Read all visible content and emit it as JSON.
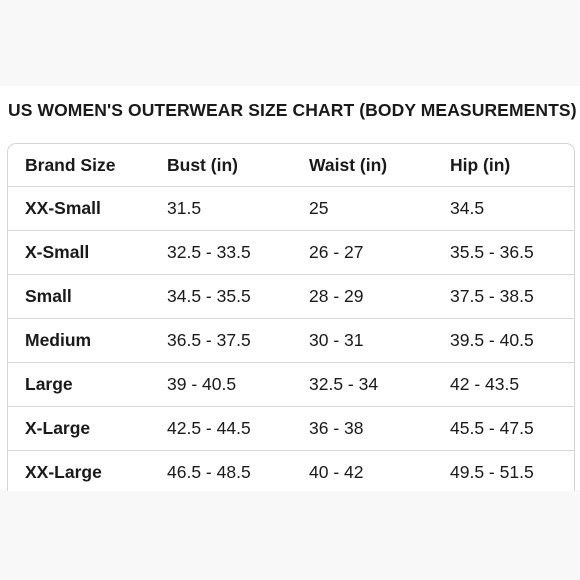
{
  "title": "US WOMEN'S OUTERWEAR SIZE CHART (BODY MEASUREMENTS)",
  "table": {
    "headers": [
      "Brand Size",
      "Bust (in)",
      "Waist (in)",
      "Hip (in)"
    ],
    "rows": [
      [
        "XX-Small",
        "31.5",
        "25",
        "34.5"
      ],
      [
        "X-Small",
        "32.5 - 33.5",
        "26 - 27",
        "35.5 - 36.5"
      ],
      [
        "Small",
        "34.5 - 35.5",
        "28 - 29",
        "37.5 - 38.5"
      ],
      [
        "Medium",
        "36.5 - 37.5",
        "30 - 31",
        "39.5 - 40.5"
      ],
      [
        "Large",
        "39 - 40.5",
        "32.5 - 34",
        "42 - 43.5"
      ],
      [
        "X-Large",
        "42.5 - 44.5",
        "36 - 38",
        "45.5 - 47.5"
      ],
      [
        "XX-Large",
        "46.5 - 48.5",
        "40 - 42",
        "49.5 - 51.5"
      ]
    ]
  },
  "colors": {
    "text": "#1a1a1a",
    "border": "#d9d9d9",
    "background_band": "#f8f8f8"
  }
}
